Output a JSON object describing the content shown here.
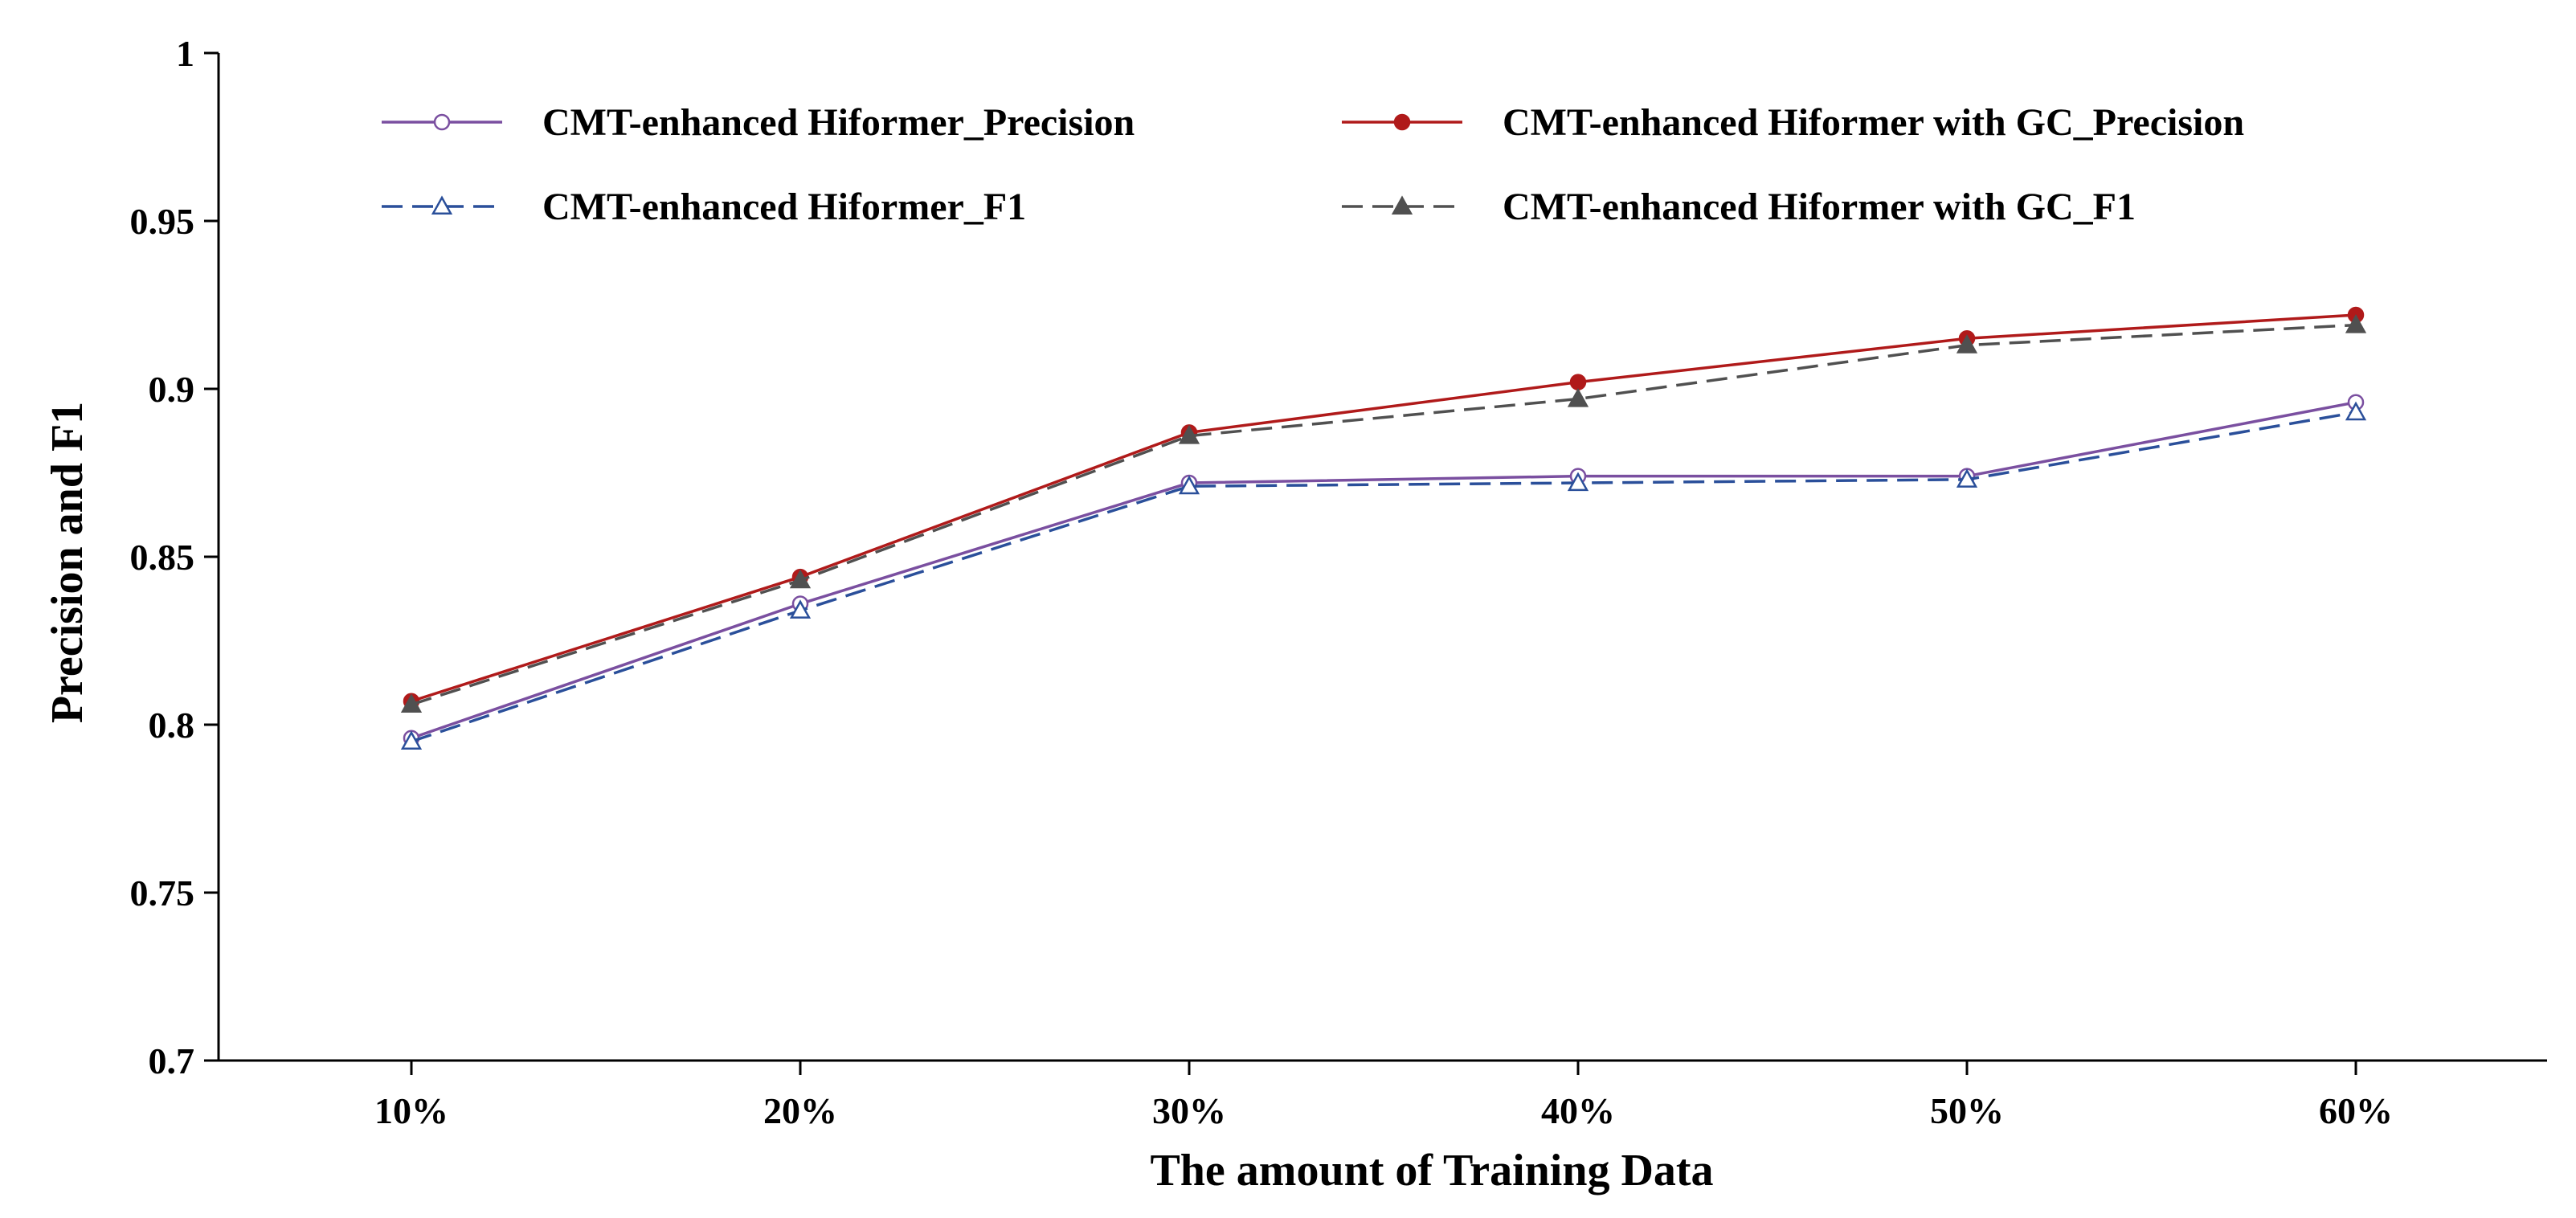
{
  "chart_data": {
    "type": "line",
    "title": "",
    "xlabel": "The amount of Training Data",
    "ylabel": "Precision and F1",
    "categories": [
      "10%",
      "20%",
      "30%",
      "40%",
      "50%",
      "60%"
    ],
    "ylim": [
      0.7,
      1
    ],
    "yticks": [
      0.7,
      0.75,
      0.8,
      0.85,
      0.9,
      0.95,
      1
    ],
    "ytick_labels": [
      "0.7",
      "0.75",
      "0.8",
      "0.85",
      "0.9",
      "0.95",
      "1"
    ],
    "grid": false,
    "legend_position": "top",
    "series": [
      {
        "name": "CMT-enhanced Hiformer_Precision",
        "values": [
          0.796,
          0.836,
          0.872,
          0.874,
          0.874,
          0.896
        ],
        "color": "#7a4fa0",
        "dash": "solid",
        "marker": "open-circle"
      },
      {
        "name": "CMT-enhanced Hiformer with GC_Precision",
        "values": [
          0.807,
          0.844,
          0.887,
          0.902,
          0.915,
          0.922
        ],
        "color": "#b01a1a",
        "dash": "solid",
        "marker": "filled-circle"
      },
      {
        "name": "CMT-enhanced Hiformer_F1",
        "values": [
          0.795,
          0.834,
          0.871,
          0.872,
          0.873,
          0.893
        ],
        "color": "#2a4f9a",
        "dash": "dashed",
        "marker": "open-triangle"
      },
      {
        "name": "CMT-enhanced Hiformer with GC_F1",
        "values": [
          0.806,
          0.843,
          0.886,
          0.897,
          0.913,
          0.919
        ],
        "color": "#505050",
        "dash": "dashed",
        "marker": "filled-triangle"
      }
    ]
  }
}
